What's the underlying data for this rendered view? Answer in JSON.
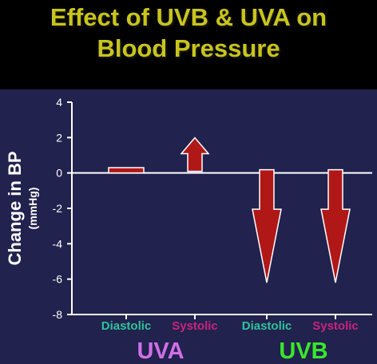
{
  "chart_data": {
    "type": "bar",
    "title": "Effect of UVB & UVA on Blood Pressure",
    "ylabel": "Change in BP",
    "yunit": "(mmHg)",
    "ylim": [
      -8,
      4
    ],
    "yticks": [
      "4",
      "2",
      "0",
      "-2",
      "-4",
      "-6",
      "-8"
    ],
    "categories": [
      "Diastolic",
      "Systolic",
      "Diastolic",
      "Systolic"
    ],
    "groups": [
      {
        "name": "UVA",
        "color": "#d070e8"
      },
      {
        "name": "UVB",
        "color": "#39e82a"
      }
    ],
    "values": [
      0.3,
      1.9,
      -6.2,
      -6.2
    ],
    "category_colors": [
      "#2ec49a",
      "#c8257e",
      "#2ec49a",
      "#c8257e"
    ],
    "bar_color": "#b01818",
    "grid": false
  }
}
